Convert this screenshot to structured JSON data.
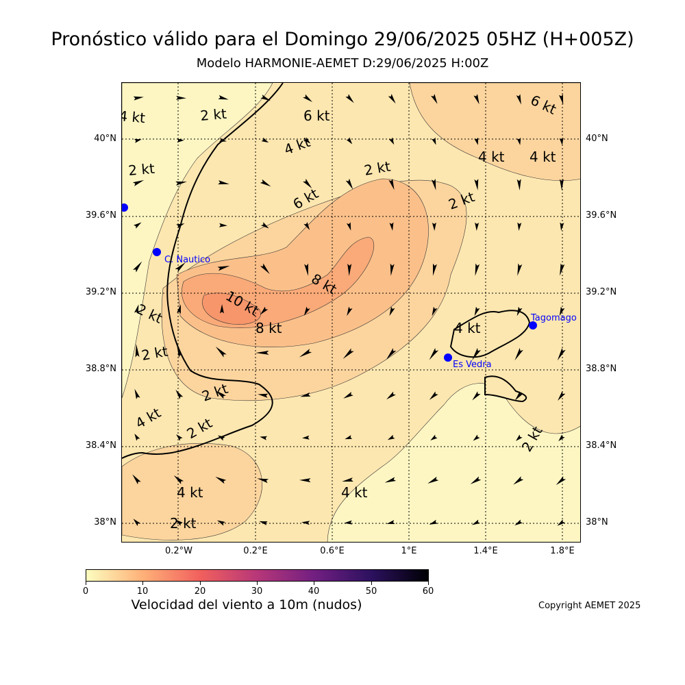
{
  "header": {
    "title": "Pronóstico válido para el Domingo 29/06/2025 05HZ (H+005Z)",
    "subtitle": "Modelo HARMONIE-AEMET D:29/06/2025 H:00Z"
  },
  "map": {
    "lat_ticks": [
      "40°N",
      "39.6°N",
      "39.2°N",
      "38.8°N",
      "38.4°N",
      "38°N"
    ],
    "lon_ticks": [
      "0.2°W",
      "0.2°E",
      "0.6°E",
      "1°E",
      "1.4°E",
      "1.8°E"
    ],
    "contour_labels": [
      "4 kt",
      "2 kt",
      "6 kt",
      "6 kt",
      "4 kt",
      "2 kt",
      "4 kt",
      "4 kt",
      "2 kt",
      "6 kt",
      "2 kt",
      "8 kt",
      "10 kt",
      "8 kt",
      "2 kt",
      "4 kt",
      "2 kt",
      "2 kt",
      "4 kt",
      "2 kt",
      "4 kt",
      "4 kt",
      "2 kt",
      "2 kt"
    ],
    "stations": [
      {
        "name": "C. Nautico"
      },
      {
        "name": "Tagomago"
      },
      {
        "name": "Es Vedra"
      }
    ],
    "colors": {
      "fill_0_2": "#fdf6c3",
      "fill_2_4": "#fde7b0",
      "fill_4_6": "#fcd59e",
      "fill_6_8": "#fbc08a",
      "fill_8_10": "#f9aa78",
      "fill_10_12": "#f7966b",
      "station": "#0000ff"
    }
  },
  "colorbar": {
    "ticks": [
      "0",
      "10",
      "20",
      "30",
      "40",
      "50",
      "60"
    ],
    "label": "Velocidad del viento a 10m (nudos)",
    "gradient": [
      "#fcfdbf",
      "#feb078",
      "#f1605d",
      "#b73779",
      "#721f81",
      "#2c115f",
      "#000004"
    ]
  },
  "footer": {
    "copyright": "Copyright AEMET 2025"
  }
}
